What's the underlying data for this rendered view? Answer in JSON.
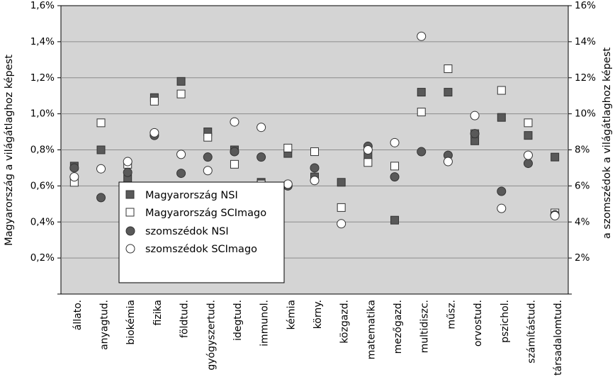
{
  "chart_data": {
    "type": "scatter",
    "title": "",
    "categories": [
      "állato.",
      "anyagtud.",
      "biokémia",
      "fizika",
      "földtud.",
      "gyógyszertud.",
      "idegtud.",
      "immunol.",
      "kémia",
      "körny.",
      "közgazd.",
      "matematika",
      "mezőgazd.",
      "multidiszc.",
      "műsz.",
      "orvostud.",
      "pszichol.",
      "számítástud.",
      "társadalomtud."
    ],
    "ylabel_left": "Magyarország a világátlaghoz képest",
    "ylabel_right": "a szomszédok a világátlaghoz képest",
    "yticks_left": [
      "0,2%",
      "0,4%",
      "0,6%",
      "0,8%",
      "1,0%",
      "1,2%",
      "1,4%",
      "1,6%"
    ],
    "yticks_right": [
      "2%",
      "4%",
      "6%",
      "8%",
      "10%",
      "12%",
      "14%",
      "16%"
    ],
    "ylim_left": [
      0,
      1.6
    ],
    "ylim_right": [
      0,
      16
    ],
    "grid": true,
    "legend_position": "lower-left inside",
    "series": [
      {
        "name": "Magyarország NSI",
        "axis": "left",
        "marker": "filled-square",
        "color": "#595959",
        "values": [
          0.71,
          0.8,
          0.64,
          1.09,
          1.18,
          0.9,
          0.8,
          0.62,
          0.78,
          0.65,
          0.62,
          0.77,
          0.41,
          1.12,
          1.12,
          0.85,
          0.98,
          0.88,
          0.76
        ]
      },
      {
        "name": "Magyarország SCImago",
        "axis": "left",
        "marker": "hollow-square",
        "color": "#ffffff",
        "values": [
          0.62,
          0.95,
          0.72,
          1.07,
          1.11,
          0.87,
          0.72,
          0.61,
          0.81,
          0.79,
          0.48,
          0.73,
          0.71,
          1.01,
          1.25,
          0.89,
          1.13,
          0.95,
          0.45
        ]
      },
      {
        "name": "szomszédok NSI",
        "axis": "right",
        "marker": "filled-circle",
        "color": "#595959",
        "values": [
          7.0,
          5.35,
          6.75,
          8.8,
          6.7,
          7.6,
          7.9,
          7.6,
          6.0,
          7.0,
          null,
          8.2,
          6.5,
          7.9,
          7.7,
          8.9,
          5.7,
          7.25,
          4.4
        ]
      },
      {
        "name": "szomszédok SCImago",
        "axis": "right",
        "marker": "hollow-circle",
        "color": "#ffffff",
        "values": [
          6.5,
          6.95,
          7.35,
          8.95,
          7.75,
          6.85,
          9.55,
          9.25,
          6.1,
          6.3,
          3.9,
          8.0,
          8.4,
          14.3,
          7.35,
          9.9,
          4.75,
          7.7,
          4.35
        ]
      }
    ]
  },
  "colors": {
    "plot_background": "#d4d4d4",
    "gridline": "#8c8c8c",
    "marker_dark": "#595959",
    "marker_light": "#ffffff"
  }
}
